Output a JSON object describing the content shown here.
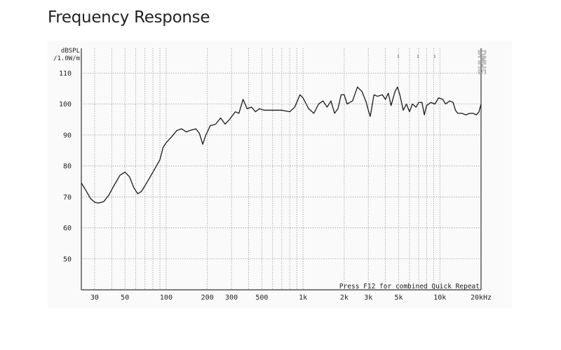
{
  "page": {
    "title": "Frequency Response"
  },
  "chart_data": {
    "type": "line",
    "title": "Frequency Response",
    "ylabel_line1": "dBSPL",
    "ylabel_line2": "/1.0W/m",
    "x_unit": "kHz",
    "x_scale": "log",
    "xlim": [
      24,
      20000
    ],
    "ylim": [
      40,
      118
    ],
    "grid": true,
    "y_ticks": [
      {
        "value": 50,
        "label": "50"
      },
      {
        "value": 60,
        "label": "60"
      },
      {
        "value": 70,
        "label": "70"
      },
      {
        "value": 80,
        "label": "80"
      },
      {
        "value": 90,
        "label": "90"
      },
      {
        "value": 100,
        "label": "100"
      },
      {
        "value": 110,
        "label": "110"
      }
    ],
    "x_ticks": [
      {
        "value": 30,
        "label": "30"
      },
      {
        "value": 50,
        "label": "50"
      },
      {
        "value": 100,
        "label": "100"
      },
      {
        "value": 200,
        "label": "200"
      },
      {
        "value": 300,
        "label": "300"
      },
      {
        "value": 500,
        "label": "500"
      },
      {
        "value": 1000,
        "label": "1k"
      },
      {
        "value": 2000,
        "label": "2k"
      },
      {
        "value": 3000,
        "label": "3k"
      },
      {
        "value": 5000,
        "label": "5k"
      },
      {
        "value": 10000,
        "label": "10k"
      },
      {
        "value": 20000,
        "label": "20kHz"
      }
    ],
    "minor_x": [
      40,
      60,
      70,
      80,
      90,
      400,
      600,
      700,
      800,
      900,
      4000,
      6000,
      7000,
      8000,
      9000
    ],
    "watermark": "DMHS",
    "note": "Press F12 for combined Quick Repeat",
    "series": [
      {
        "color": "#1a1a1a",
        "points": [
          [
            24,
            74.5
          ],
          [
            26,
            72
          ],
          [
            28,
            69.5
          ],
          [
            30,
            68.3
          ],
          [
            32,
            68
          ],
          [
            35,
            68.5
          ],
          [
            38,
            70.5
          ],
          [
            42,
            74
          ],
          [
            46,
            77
          ],
          [
            50,
            78
          ],
          [
            54,
            76.5
          ],
          [
            58,
            73
          ],
          [
            62,
            71
          ],
          [
            66,
            71.8
          ],
          [
            72,
            74.5
          ],
          [
            80,
            78
          ],
          [
            90,
            82
          ],
          [
            95,
            86
          ],
          [
            100,
            87.5
          ],
          [
            110,
            89.5
          ],
          [
            120,
            91.5
          ],
          [
            130,
            92
          ],
          [
            140,
            91
          ],
          [
            150,
            91.5
          ],
          [
            165,
            92
          ],
          [
            175,
            90.5
          ],
          [
            185,
            87
          ],
          [
            195,
            90
          ],
          [
            210,
            93
          ],
          [
            230,
            93.5
          ],
          [
            250,
            95.5
          ],
          [
            270,
            93.5
          ],
          [
            290,
            95
          ],
          [
            320,
            97.5
          ],
          [
            340,
            97
          ],
          [
            365,
            101.5
          ],
          [
            390,
            98.5
          ],
          [
            420,
            99
          ],
          [
            450,
            97.5
          ],
          [
            480,
            98.5
          ],
          [
            520,
            98
          ],
          [
            600,
            98
          ],
          [
            700,
            98
          ],
          [
            800,
            97.5
          ],
          [
            870,
            99
          ],
          [
            950,
            103
          ],
          [
            1000,
            102
          ],
          [
            1100,
            98.5
          ],
          [
            1200,
            97
          ],
          [
            1300,
            100
          ],
          [
            1400,
            101
          ],
          [
            1500,
            99
          ],
          [
            1600,
            101
          ],
          [
            1700,
            97
          ],
          [
            1800,
            98.5
          ],
          [
            1900,
            103
          ],
          [
            2000,
            103
          ],
          [
            2100,
            100
          ],
          [
            2300,
            101
          ],
          [
            2500,
            105.5
          ],
          [
            2700,
            104
          ],
          [
            2900,
            100.5
          ],
          [
            3000,
            98
          ],
          [
            3100,
            96
          ],
          [
            3300,
            103
          ],
          [
            3500,
            102.5
          ],
          [
            3800,
            103
          ],
          [
            4000,
            101.5
          ],
          [
            4200,
            103.5
          ],
          [
            4400,
            99.5
          ],
          [
            4700,
            104
          ],
          [
            4900,
            105.5
          ],
          [
            5100,
            103
          ],
          [
            5400,
            98
          ],
          [
            5700,
            100
          ],
          [
            6000,
            97.5
          ],
          [
            6300,
            100
          ],
          [
            6700,
            99
          ],
          [
            7000,
            100.5
          ],
          [
            7400,
            100.5
          ],
          [
            7700,
            96.5
          ],
          [
            8000,
            99.5
          ],
          [
            8600,
            100.5
          ],
          [
            9200,
            100
          ],
          [
            9800,
            102
          ],
          [
            10500,
            101.5
          ],
          [
            11000,
            100
          ],
          [
            11800,
            101
          ],
          [
            12500,
            100.5
          ],
          [
            13000,
            98
          ],
          [
            13500,
            97
          ],
          [
            14500,
            97
          ],
          [
            15500,
            96.5
          ],
          [
            16500,
            97
          ],
          [
            17500,
            97
          ],
          [
            18500,
            96.5
          ],
          [
            19300,
            97.5
          ],
          [
            20000,
            100
          ]
        ]
      }
    ]
  }
}
